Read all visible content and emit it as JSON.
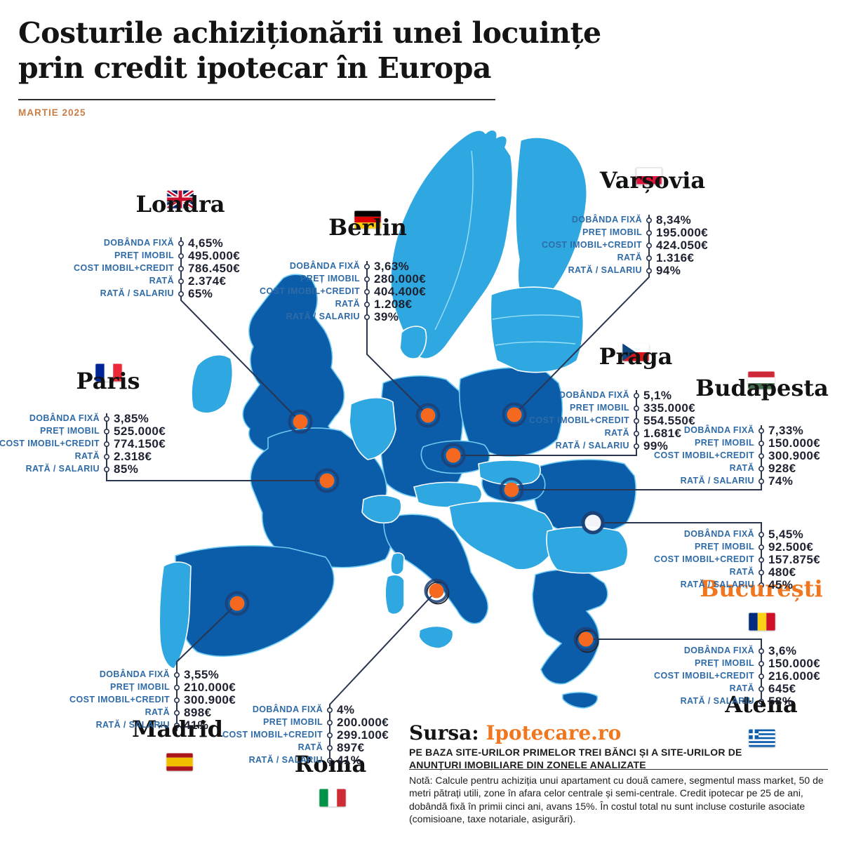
{
  "poster": {
    "title_line1": "Costurile achiziționării unei locuințe",
    "title_line2": "prin credit ipotecar în Europa",
    "date": "MARTIE 2025"
  },
  "metric_labels": [
    "DOBÂNDA FIXĂ",
    "PREȚ IMOBIL",
    "COST IMOBIL+CREDIT",
    "RATĂ",
    "RATĂ / SALARIU"
  ],
  "cities": [
    {
      "id": "londra",
      "name": "Londra",
      "flag": "uk",
      "values": [
        "4,65%",
        "495.000€",
        "786.450€",
        "2.374€",
        "65%"
      ]
    },
    {
      "id": "berlin",
      "name": "Berlin",
      "flag": "de",
      "values": [
        "3,63%",
        "280.000€",
        "404.400€",
        "1.208€",
        "39%"
      ]
    },
    {
      "id": "varsovia",
      "name": "Varșovia",
      "flag": "pl",
      "values": [
        "8,34%",
        "195.000€",
        "424.050€",
        "1.316€",
        "94%"
      ]
    },
    {
      "id": "paris",
      "name": "Paris",
      "flag": "fr",
      "values": [
        "3,85%",
        "525.000€",
        "774.150€",
        "2.318€",
        "85%"
      ]
    },
    {
      "id": "praga",
      "name": "Praga",
      "flag": "cz",
      "values": [
        "5,1%",
        "335.000€",
        "554.550€",
        "1.681€",
        "99%"
      ]
    },
    {
      "id": "budapesta",
      "name": "Budapesta",
      "flag": "hu",
      "values": [
        "7,33%",
        "150.000€",
        "300.900€",
        "928€",
        "74%"
      ]
    },
    {
      "id": "bucuresti",
      "name": "București",
      "flag": "ro",
      "values": [
        "5,45%",
        "92.500€",
        "157.875€",
        "480€",
        "45%"
      ],
      "highlight": true
    },
    {
      "id": "madrid",
      "name": "Madrid",
      "flag": "es",
      "values": [
        "3,55%",
        "210.000€",
        "300.900€",
        "898€",
        "41%"
      ]
    },
    {
      "id": "roma",
      "name": "Roma",
      "flag": "it",
      "values": [
        "4%",
        "200.000€",
        "299.100€",
        "897€",
        "41%"
      ]
    },
    {
      "id": "atena",
      "name": "Atena",
      "flag": "gr",
      "values": [
        "3,6%",
        "150.000€",
        "216.000€",
        "645€",
        "58%"
      ]
    }
  ],
  "source": {
    "prefix": "Sursa: ",
    "name": "Ipotecare.ro",
    "basis": "PE BAZA SITE-URILOR PRIMELOR TREI BĂNCI ȘI A SITE-URILOR DE ANUNȚURI IMOBILIARE DIN ZONELE ANALIZATE",
    "note": "Notă: Calcule pentru achiziția unui apartament cu două camere, segmentul mass market, 50 de metri pătrați utili, zone în afara celor centrale și semi-centrale. Credit ipotecar pe 25 de ani, dobândă fixă în primii cinci ani, avans 15%. În costul total nu sunt incluse costurile asociate (comisioane, taxe notariale, asigurări)."
  },
  "colors": {
    "map_light": "#2fa8e1",
    "map_dark": "#0b5da9",
    "accent_orange": "#f0761f",
    "dot_orange": "#f4681f",
    "ring_navy": "#1c4077",
    "label_blue": "#2f6ba7",
    "date_orange": "#c97e45",
    "connector": "#2a3550"
  }
}
